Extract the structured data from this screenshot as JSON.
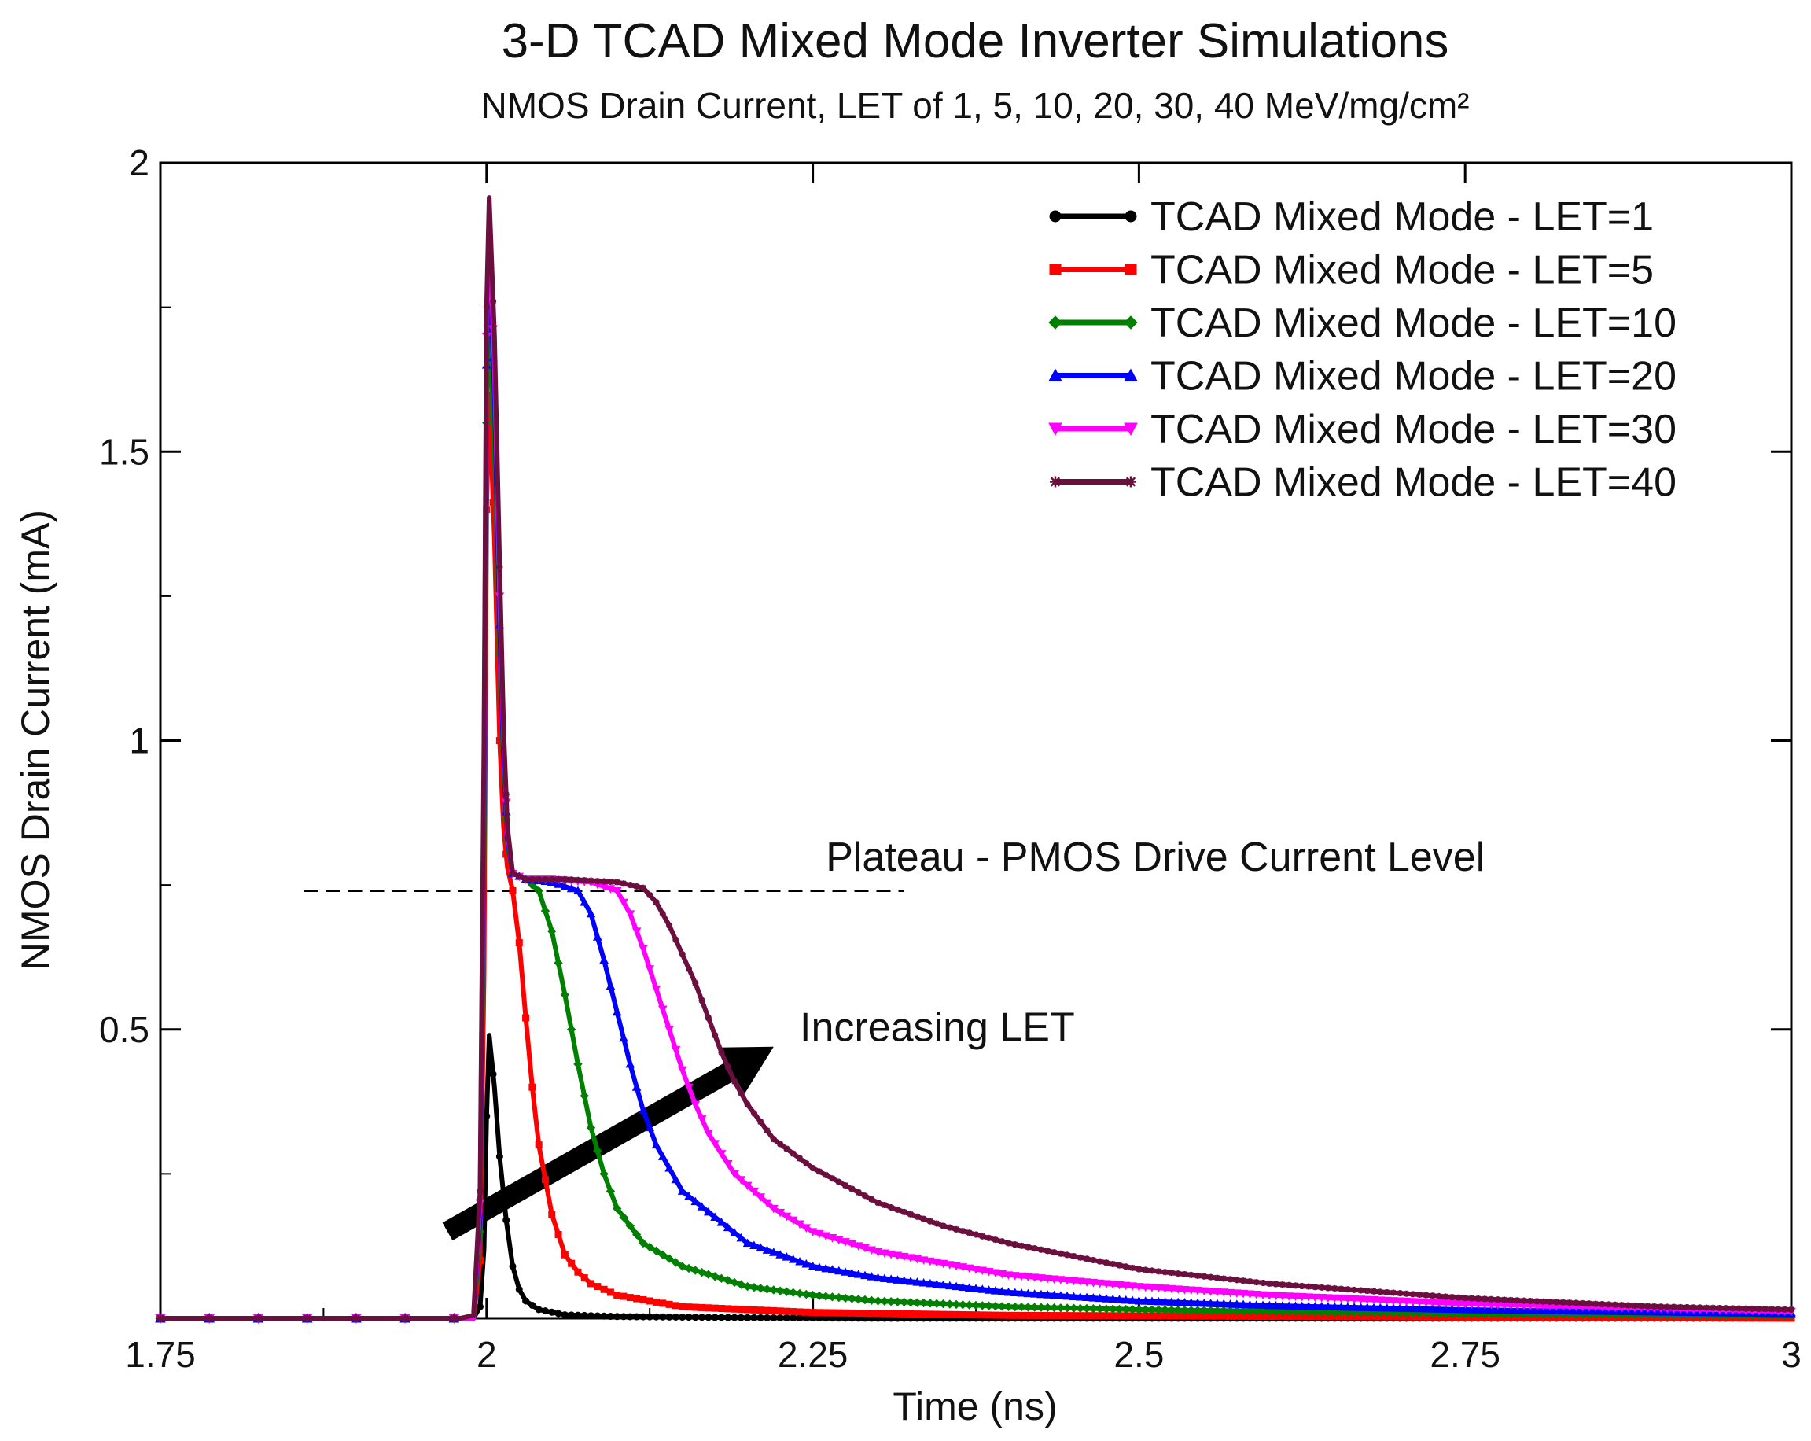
{
  "chart_data": {
    "type": "line",
    "title": "3-D TCAD Mixed Mode Inverter Simulations",
    "subtitle": "NMOS Drain Current, LET of 1, 5, 10, 20, 30, 40 MeV/mg/cm²",
    "xlabel": "Time (ns)",
    "ylabel": "NMOS Drain Current (mA)",
    "xlim": [
      1.75,
      3
    ],
    "ylim": [
      0,
      2
    ],
    "x_ticks": [
      1.75,
      2,
      2.25,
      2.5,
      2.75,
      3
    ],
    "x_tick_labels": [
      "1.75",
      "2",
      "2.25",
      "2.5",
      "2.75",
      "3"
    ],
    "y_ticks": [
      0.5,
      1,
      1.5,
      2
    ],
    "y_tick_labels": [
      "0.5",
      "1",
      "1.5",
      "2"
    ],
    "grid": false,
    "legend_position": "top-right",
    "series": [
      {
        "name": "TCAD Mixed Mode - LET=1",
        "color": "#000000",
        "marker": "circle",
        "points": [
          [
            1.75,
            0
          ],
          [
            1.99,
            0
          ],
          [
            1.995,
            0.02
          ],
          [
            1.998,
            0.12
          ],
          [
            2.0,
            0.35
          ],
          [
            2.002,
            0.49
          ],
          [
            2.006,
            0.4
          ],
          [
            2.01,
            0.28
          ],
          [
            2.015,
            0.17
          ],
          [
            2.02,
            0.09
          ],
          [
            2.025,
            0.05
          ],
          [
            2.03,
            0.03
          ],
          [
            2.04,
            0.015
          ],
          [
            2.06,
            0.006
          ],
          [
            2.1,
            0.003
          ],
          [
            2.2,
            0.001
          ],
          [
            2.3,
            0
          ],
          [
            3.0,
            0
          ]
        ]
      },
      {
        "name": "TCAD Mixed Mode - LET=5",
        "color": "#ff0000",
        "marker": "square",
        "points": [
          [
            1.75,
            0
          ],
          [
            1.99,
            0
          ],
          [
            1.995,
            0.1
          ],
          [
            1.998,
            0.6
          ],
          [
            2.0,
            1.4
          ],
          [
            2.002,
            1.6
          ],
          [
            2.006,
            1.35
          ],
          [
            2.01,
            1.0
          ],
          [
            2.013,
            0.85
          ],
          [
            2.016,
            0.78
          ],
          [
            2.02,
            0.74
          ],
          [
            2.025,
            0.65
          ],
          [
            2.03,
            0.52
          ],
          [
            2.035,
            0.4
          ],
          [
            2.04,
            0.3
          ],
          [
            2.05,
            0.18
          ],
          [
            2.06,
            0.11
          ],
          [
            2.07,
            0.08
          ],
          [
            2.08,
            0.06
          ],
          [
            2.1,
            0.04
          ],
          [
            2.15,
            0.02
          ],
          [
            2.25,
            0.01
          ],
          [
            2.4,
            0.005
          ],
          [
            3.0,
            0
          ]
        ]
      },
      {
        "name": "TCAD Mixed Mode - LET=10",
        "color": "#008000",
        "marker": "diamond",
        "points": [
          [
            1.75,
            0
          ],
          [
            1.99,
            0
          ],
          [
            1.995,
            0.15
          ],
          [
            1.998,
            0.8
          ],
          [
            2.0,
            1.55
          ],
          [
            2.002,
            1.75
          ],
          [
            2.006,
            1.5
          ],
          [
            2.01,
            1.15
          ],
          [
            2.013,
            0.95
          ],
          [
            2.016,
            0.82
          ],
          [
            2.02,
            0.77
          ],
          [
            2.03,
            0.76
          ],
          [
            2.04,
            0.74
          ],
          [
            2.05,
            0.67
          ],
          [
            2.06,
            0.56
          ],
          [
            2.07,
            0.44
          ],
          [
            2.08,
            0.33
          ],
          [
            2.09,
            0.25
          ],
          [
            2.1,
            0.19
          ],
          [
            2.12,
            0.13
          ],
          [
            2.15,
            0.09
          ],
          [
            2.2,
            0.055
          ],
          [
            2.25,
            0.04
          ],
          [
            2.3,
            0.03
          ],
          [
            2.4,
            0.02
          ],
          [
            2.5,
            0.015
          ],
          [
            2.75,
            0.008
          ],
          [
            3.0,
            0.005
          ]
        ]
      },
      {
        "name": "TCAD Mixed Mode - LET=20",
        "color": "#0000ff",
        "marker": "triangle",
        "points": [
          [
            1.75,
            0
          ],
          [
            1.99,
            0
          ],
          [
            1.995,
            0.18
          ],
          [
            1.998,
            0.9
          ],
          [
            2.0,
            1.65
          ],
          [
            2.002,
            1.85
          ],
          [
            2.006,
            1.6
          ],
          [
            2.01,
            1.2
          ],
          [
            2.013,
            0.97
          ],
          [
            2.016,
            0.83
          ],
          [
            2.02,
            0.77
          ],
          [
            2.03,
            0.76
          ],
          [
            2.05,
            0.755
          ],
          [
            2.07,
            0.74
          ],
          [
            2.08,
            0.7
          ],
          [
            2.09,
            0.62
          ],
          [
            2.1,
            0.53
          ],
          [
            2.11,
            0.44
          ],
          [
            2.12,
            0.36
          ],
          [
            2.13,
            0.3
          ],
          [
            2.15,
            0.22
          ],
          [
            2.2,
            0.13
          ],
          [
            2.25,
            0.09
          ],
          [
            2.3,
            0.07
          ],
          [
            2.4,
            0.045
          ],
          [
            2.5,
            0.03
          ],
          [
            2.6,
            0.022
          ],
          [
            2.75,
            0.015
          ],
          [
            3.0,
            0.008
          ]
        ]
      },
      {
        "name": "TCAD Mixed Mode - LET=30",
        "color": "#ff00ff",
        "marker": "triangle-down",
        "points": [
          [
            1.75,
            0
          ],
          [
            1.99,
            0
          ],
          [
            1.995,
            0.2
          ],
          [
            1.998,
            0.95
          ],
          [
            2.0,
            1.7
          ],
          [
            2.002,
            1.9
          ],
          [
            2.006,
            1.65
          ],
          [
            2.01,
            1.25
          ],
          [
            2.013,
            1.0
          ],
          [
            2.016,
            0.84
          ],
          [
            2.02,
            0.77
          ],
          [
            2.03,
            0.76
          ],
          [
            2.05,
            0.76
          ],
          [
            2.08,
            0.755
          ],
          [
            2.1,
            0.74
          ],
          [
            2.11,
            0.7
          ],
          [
            2.12,
            0.64
          ],
          [
            2.13,
            0.57
          ],
          [
            2.14,
            0.5
          ],
          [
            2.15,
            0.43
          ],
          [
            2.16,
            0.37
          ],
          [
            2.17,
            0.32
          ],
          [
            2.19,
            0.25
          ],
          [
            2.22,
            0.19
          ],
          [
            2.25,
            0.15
          ],
          [
            2.3,
            0.115
          ],
          [
            2.4,
            0.075
          ],
          [
            2.5,
            0.055
          ],
          [
            2.6,
            0.04
          ],
          [
            2.75,
            0.025
          ],
          [
            3.0,
            0.012
          ]
        ]
      },
      {
        "name": "TCAD Mixed Mode - LET=40",
        "color": "#6b0f3f",
        "marker": "star",
        "points": [
          [
            1.75,
            0
          ],
          [
            1.98,
            0
          ],
          [
            1.99,
            0.005
          ],
          [
            1.995,
            0.22
          ],
          [
            1.998,
            1.0
          ],
          [
            2.0,
            1.75
          ],
          [
            2.002,
            1.94
          ],
          [
            2.006,
            1.7
          ],
          [
            2.01,
            1.3
          ],
          [
            2.013,
            1.02
          ],
          [
            2.016,
            0.85
          ],
          [
            2.02,
            0.77
          ],
          [
            2.03,
            0.76
          ],
          [
            2.06,
            0.76
          ],
          [
            2.1,
            0.755
          ],
          [
            2.12,
            0.745
          ],
          [
            2.13,
            0.72
          ],
          [
            2.14,
            0.68
          ],
          [
            2.15,
            0.63
          ],
          [
            2.16,
            0.58
          ],
          [
            2.17,
            0.52
          ],
          [
            2.18,
            0.46
          ],
          [
            2.19,
            0.41
          ],
          [
            2.2,
            0.37
          ],
          [
            2.22,
            0.31
          ],
          [
            2.25,
            0.26
          ],
          [
            2.3,
            0.2
          ],
          [
            2.35,
            0.16
          ],
          [
            2.4,
            0.13
          ],
          [
            2.5,
            0.085
          ],
          [
            2.6,
            0.06
          ],
          [
            2.75,
            0.035
          ],
          [
            2.9,
            0.02
          ],
          [
            3.0,
            0.015
          ]
        ]
      }
    ],
    "annotations": [
      {
        "text": "Plateau - PMOS Drive Current Level",
        "x": 2.26,
        "y": 0.775,
        "line": {
          "x1": 1.86,
          "x2": 2.32,
          "y": 0.74,
          "style": "dashed",
          "color": "#000000"
        }
      },
      {
        "text": "Increasing LET",
        "x": 2.24,
        "y": 0.48,
        "arrow": {
          "from": [
            1.97,
            0.15
          ],
          "to": [
            2.22,
            0.47
          ],
          "color": "#000000"
        }
      }
    ]
  }
}
